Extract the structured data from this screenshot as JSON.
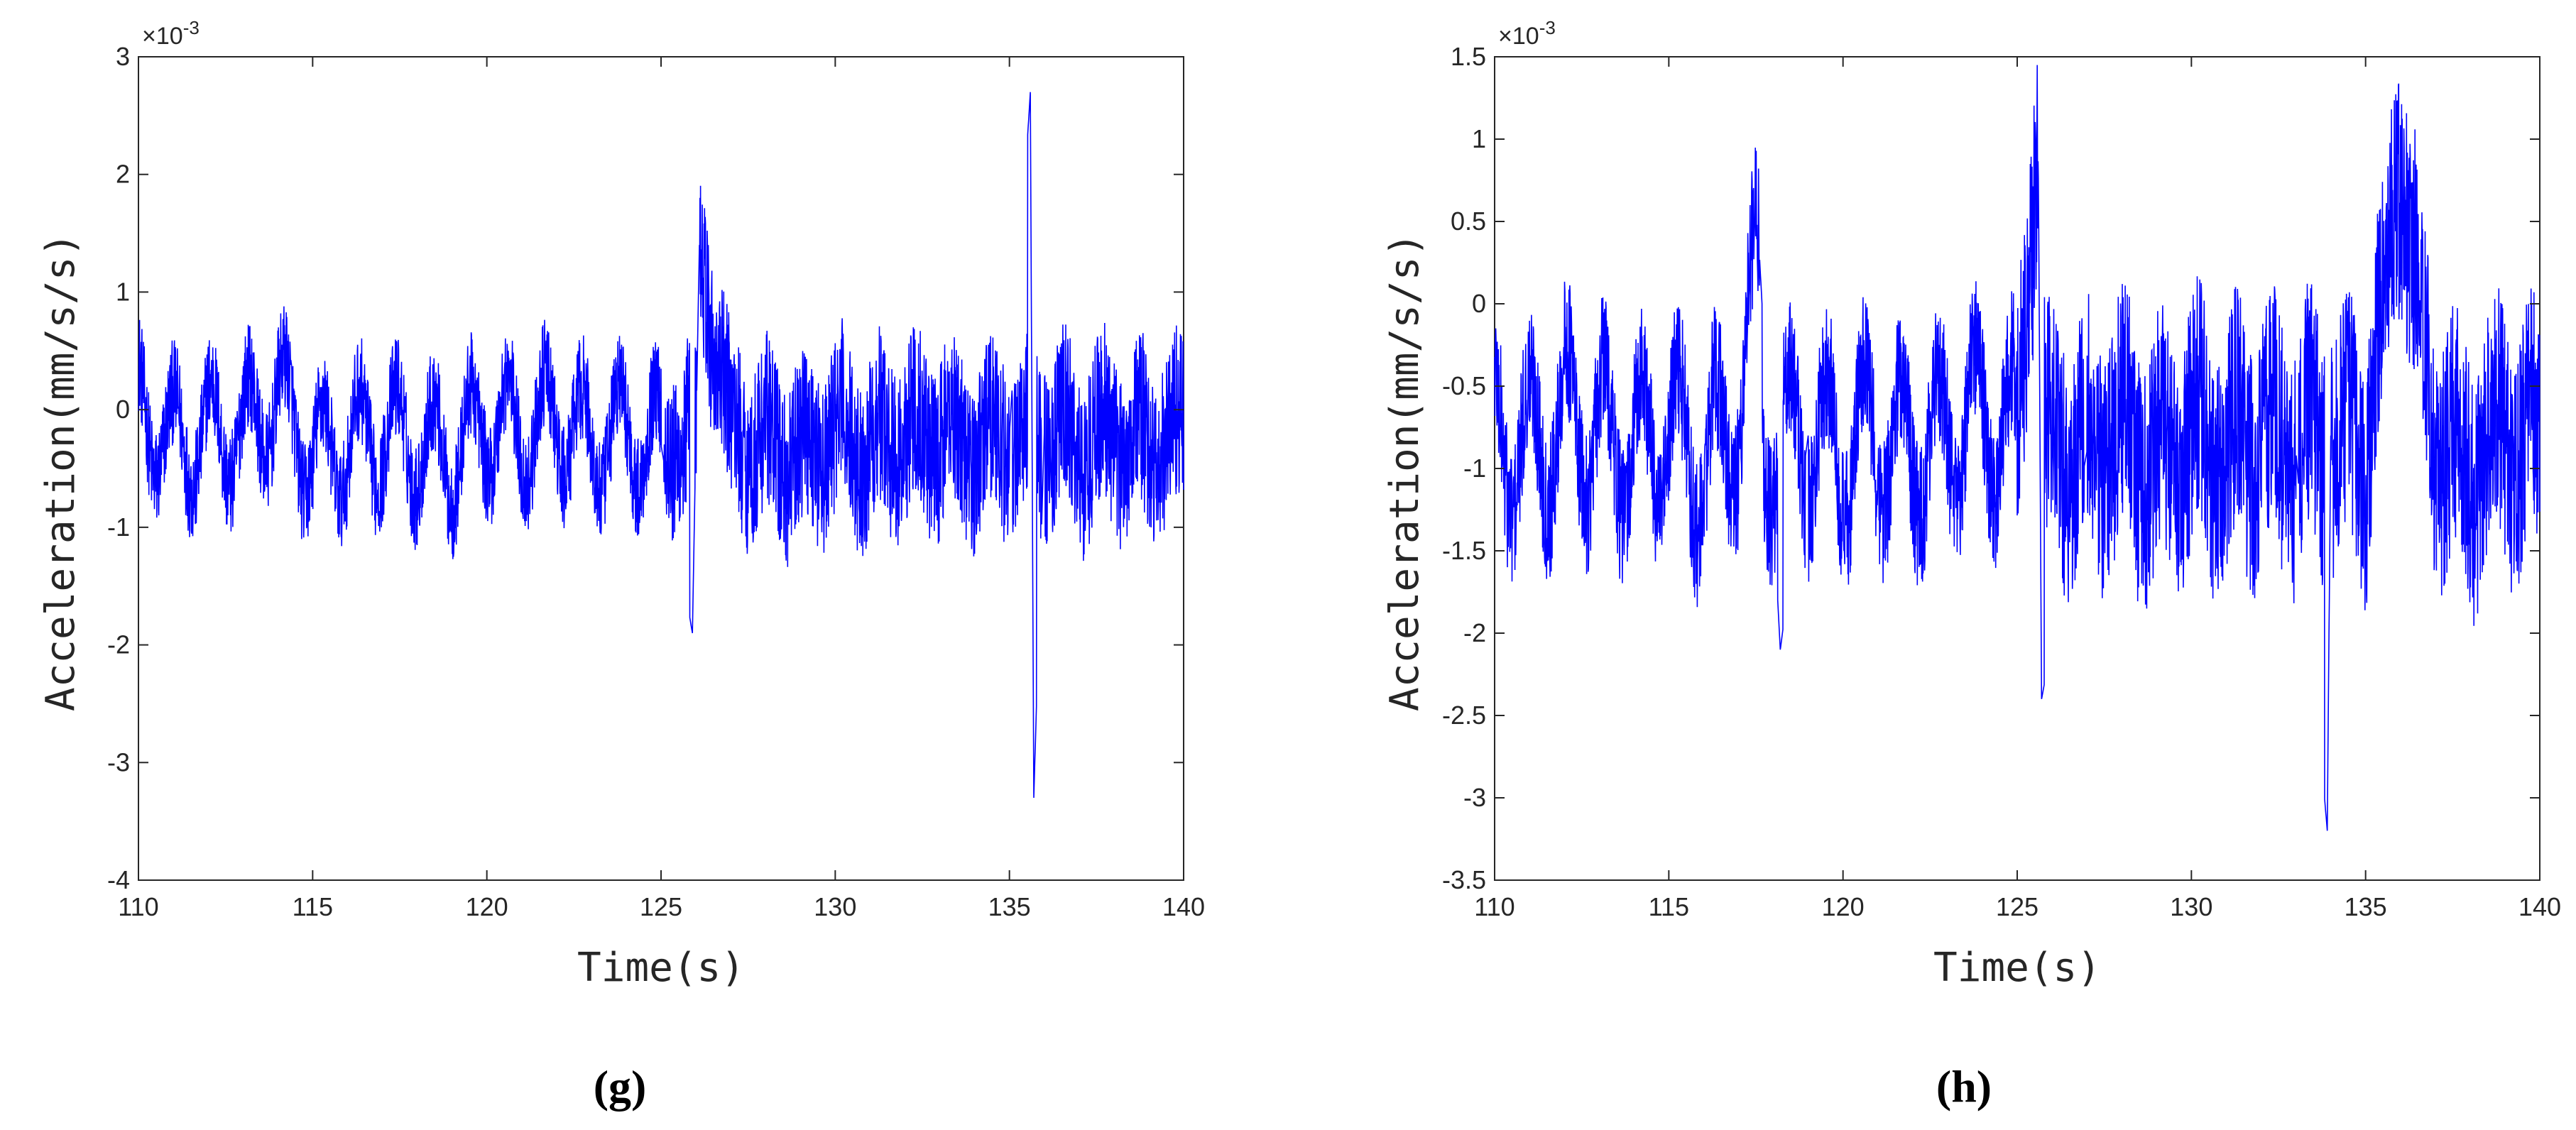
{
  "colors": {
    "line": "#0000ff",
    "axis": "#262626",
    "background": "#ffffff"
  },
  "chart_data": [
    {
      "type": "line",
      "panel_label": "(g)",
      "xlabel": "Time(s)",
      "ylabel": "Acceleration(mm/s/s)",
      "scale_label": "×10",
      "scale_exponent": "-3",
      "xlim": [
        110,
        140
      ],
      "ylim": [
        -4,
        3
      ],
      "xticks": [
        110,
        115,
        120,
        125,
        130,
        135,
        140
      ],
      "xtick_labels": [
        "110",
        "115",
        "120",
        "125",
        "130",
        "135",
        "140"
      ],
      "yticks": [
        -4,
        -3,
        -2,
        -1,
        0,
        1,
        2,
        3
      ],
      "ytick_labels": [
        "-4",
        "-3",
        "-2",
        "-1",
        "0",
        "1",
        "2",
        "3"
      ],
      "grid": false,
      "legend": "none",
      "series": [
        {
          "x": [
            110,
            111,
            112,
            113,
            114,
            115,
            116,
            117,
            118,
            119,
            120,
            121,
            122,
            123,
            124,
            125,
            125.9,
            126.1,
            127,
            128,
            129,
            130,
            131,
            132,
            133,
            134,
            135,
            135.6,
            135.7,
            136,
            137,
            138,
            139,
            140
          ],
          "y": [
            0.0,
            -0.3,
            -0.2,
            -0.2,
            0.1,
            -0.4,
            -0.3,
            -0.2,
            -0.3,
            -0.4,
            -0.1,
            -0.2,
            -0.1,
            -0.3,
            -0.2,
            -0.3,
            -1.9,
            1.4,
            -0.2,
            -0.3,
            -0.4,
            -0.2,
            -0.3,
            -0.2,
            -0.2,
            -0.3,
            -0.2,
            2.7,
            -3.3,
            -0.2,
            -0.3,
            -0.2,
            -0.3,
            -0.2
          ]
        }
      ]
    },
    {
      "type": "line",
      "panel_label": "(h)",
      "xlabel": "Time(s)",
      "ylabel": "Acceleration(mm/s/s)",
      "scale_label": "×10",
      "scale_exponent": "-3",
      "xlim": [
        110,
        140
      ],
      "ylim": [
        -3.5,
        1.5
      ],
      "xticks": [
        110,
        115,
        120,
        125,
        130,
        135,
        140
      ],
      "xtick_labels": [
        "110",
        "115",
        "120",
        "125",
        "130",
        "135",
        "140"
      ],
      "yticks": [
        -3.5,
        -3,
        -2.5,
        -2,
        -1.5,
        -1,
        -0.5,
        0,
        0.5,
        1,
        1.5
      ],
      "ytick_labels": [
        "-3.5",
        "-3",
        "-2.5",
        "-2",
        "-1.5",
        "-1",
        "-0.5",
        "0",
        "0.5",
        "1",
        "1.5"
      ],
      "grid": false,
      "legend": "none",
      "series": [
        {
          "x": [
            110,
            111,
            112,
            113,
            114,
            115,
            116,
            117,
            117.6,
            118.2,
            119,
            120,
            121,
            122,
            123,
            124,
            125,
            125.6,
            125.7,
            127,
            128,
            129,
            130,
            131,
            132,
            133,
            133.9,
            134,
            135,
            136,
            137,
            138,
            139,
            140
          ],
          "y": [
            -0.8,
            -0.9,
            -0.7,
            -0.8,
            -0.9,
            -0.8,
            -1.0,
            -0.7,
            0.3,
            -2.1,
            -0.8,
            -0.9,
            -0.8,
            -0.9,
            -0.8,
            -0.7,
            -0.8,
            1.05,
            -2.4,
            -0.9,
            -0.8,
            -1.0,
            -0.8,
            -0.9,
            -0.8,
            -0.9,
            -3.2,
            -0.8,
            -0.9,
            0.9,
            -0.8,
            -1.0,
            -0.8,
            -0.9
          ]
        }
      ]
    }
  ]
}
